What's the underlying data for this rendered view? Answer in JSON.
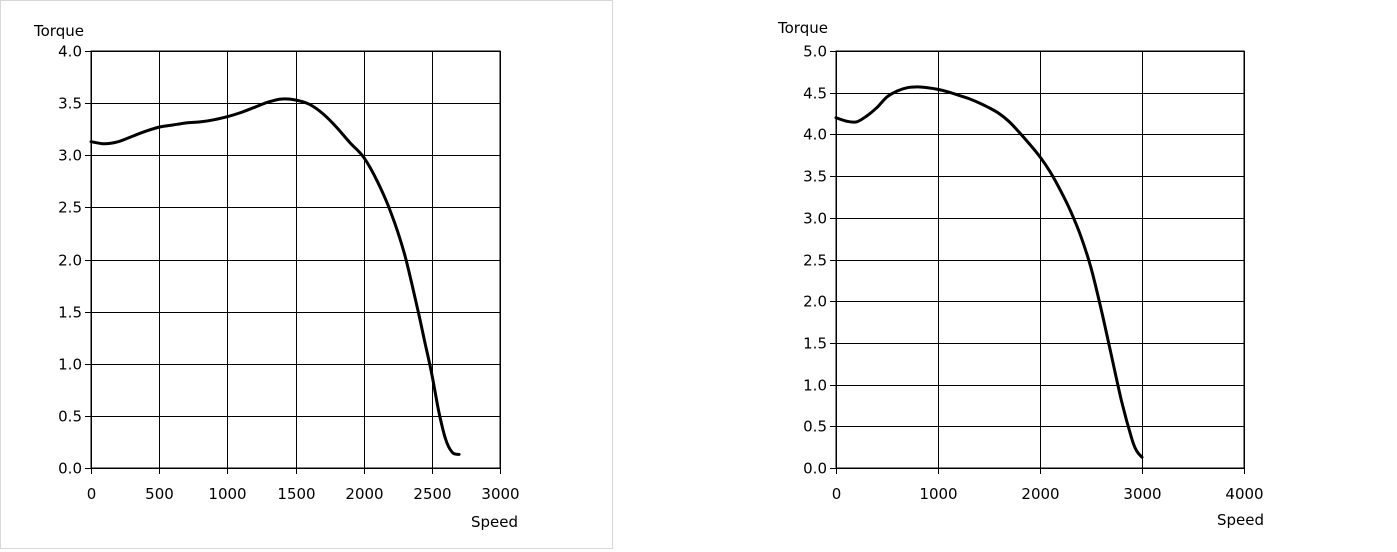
{
  "chart_data": [
    {
      "type": "line",
      "title": "",
      "xlabel": "Speed",
      "ylabel": "Torque",
      "xlim": [
        0,
        3000
      ],
      "ylim": [
        0,
        4
      ],
      "grid": true,
      "x_ticks": [
        "0",
        "500",
        "1000",
        "1500",
        "2000",
        "2500",
        "3000"
      ],
      "y_ticks": [
        "0.0",
        "0.5",
        "1.0",
        "1.5",
        "2.0",
        "2.5",
        "3.0",
        "3.5",
        "4.0"
      ],
      "series": [
        {
          "x": [
            0,
            100,
            200,
            300,
            400,
            500,
            600,
            700,
            800,
            900,
            1000,
            1100,
            1200,
            1300,
            1400,
            1500,
            1600,
            1700,
            1800,
            1900,
            2000,
            2100,
            2200,
            2300,
            2400,
            2450,
            2500,
            2550,
            2600,
            2650,
            2700
          ],
          "y": [
            3.13,
            3.11,
            3.13,
            3.18,
            3.23,
            3.27,
            3.29,
            3.31,
            3.32,
            3.34,
            3.37,
            3.41,
            3.46,
            3.51,
            3.54,
            3.53,
            3.49,
            3.4,
            3.27,
            3.12,
            2.98,
            2.75,
            2.45,
            2.05,
            1.5,
            1.2,
            0.9,
            0.55,
            0.28,
            0.15,
            0.13
          ]
        }
      ]
    },
    {
      "type": "line",
      "title": "",
      "xlabel": "Speed",
      "ylabel": "Torque",
      "xlim": [
        0,
        4000
      ],
      "ylim": [
        0,
        5
      ],
      "grid": true,
      "x_ticks": [
        "0",
        "1000",
        "2000",
        "3000",
        "4000"
      ],
      "y_ticks": [
        "0.0",
        "0.5",
        "1.0",
        "1.5",
        "2.0",
        "2.5",
        "3.0",
        "3.5",
        "4.0",
        "4.5",
        "5.0"
      ],
      "series": [
        {
          "x": [
            0,
            100,
            200,
            300,
            400,
            500,
            600,
            700,
            800,
            900,
            1000,
            1100,
            1200,
            1300,
            1400,
            1500,
            1600,
            1700,
            1800,
            1900,
            2000,
            2100,
            2200,
            2300,
            2400,
            2500,
            2600,
            2700,
            2800,
            2900,
            2950,
            3000
          ],
          "y": [
            4.2,
            4.16,
            4.15,
            4.22,
            4.32,
            4.45,
            4.52,
            4.56,
            4.57,
            4.56,
            4.54,
            4.51,
            4.47,
            4.43,
            4.38,
            4.32,
            4.25,
            4.15,
            4.02,
            3.88,
            3.73,
            3.55,
            3.33,
            3.08,
            2.78,
            2.4,
            1.9,
            1.35,
            0.8,
            0.35,
            0.2,
            0.13
          ]
        }
      ]
    }
  ]
}
